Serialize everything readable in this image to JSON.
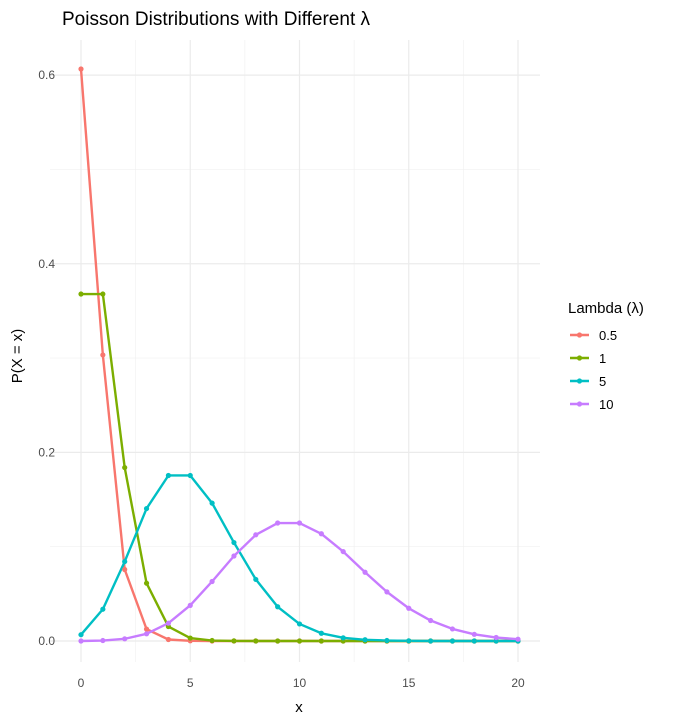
{
  "chart_data": {
    "type": "line",
    "title": "Poisson Distributions with Different λ",
    "xlabel": "x",
    "ylabel": "P(X = x)",
    "xlim": [
      0,
      20
    ],
    "ylim": [
      0,
      0.6065
    ],
    "x_ticks": [
      0,
      5,
      10,
      15,
      20
    ],
    "y_ticks": [
      0.0,
      0.2,
      0.4,
      0.6
    ],
    "y_tick_labels": [
      "0.0",
      "0.2",
      "0.4",
      "0.6"
    ],
    "grid": true,
    "legend": {
      "title": "Lambda (λ)",
      "position": "right"
    },
    "x": [
      0,
      1,
      2,
      3,
      4,
      5,
      6,
      7,
      8,
      9,
      10,
      11,
      12,
      13,
      14,
      15,
      16,
      17,
      18,
      19,
      20
    ],
    "series": [
      {
        "name": "0.5",
        "color": "#F8766D",
        "values": [
          0.6065,
          0.3033,
          0.0758,
          0.0126,
          0.0016,
          0.0002,
          0.0,
          0.0,
          0.0,
          0.0,
          0.0,
          0.0,
          0.0,
          0.0,
          0.0,
          0.0,
          0.0,
          0.0,
          0.0,
          0.0,
          0.0
        ]
      },
      {
        "name": "1",
        "color": "#7CAE00",
        "values": [
          0.3679,
          0.3679,
          0.1839,
          0.0613,
          0.0153,
          0.0031,
          0.0005,
          0.0001,
          0.0,
          0.0,
          0.0,
          0.0,
          0.0,
          0.0,
          0.0,
          0.0,
          0.0,
          0.0,
          0.0,
          0.0,
          0.0
        ]
      },
      {
        "name": "5",
        "color": "#00BFC4",
        "values": [
          0.0067,
          0.0337,
          0.0842,
          0.1404,
          0.1755,
          0.1755,
          0.1462,
          0.1044,
          0.0653,
          0.0363,
          0.0181,
          0.0082,
          0.0034,
          0.0013,
          0.0005,
          0.0002,
          0.0,
          0.0,
          0.0,
          0.0,
          0.0
        ]
      },
      {
        "name": "10",
        "color": "#C77CFF",
        "values": [
          0.0,
          0.0005,
          0.0023,
          0.0076,
          0.0189,
          0.0378,
          0.0631,
          0.0901,
          0.1126,
          0.1251,
          0.1251,
          0.1137,
          0.0948,
          0.0729,
          0.0521,
          0.0347,
          0.0217,
          0.0128,
          0.0071,
          0.0037,
          0.0019
        ]
      }
    ]
  }
}
